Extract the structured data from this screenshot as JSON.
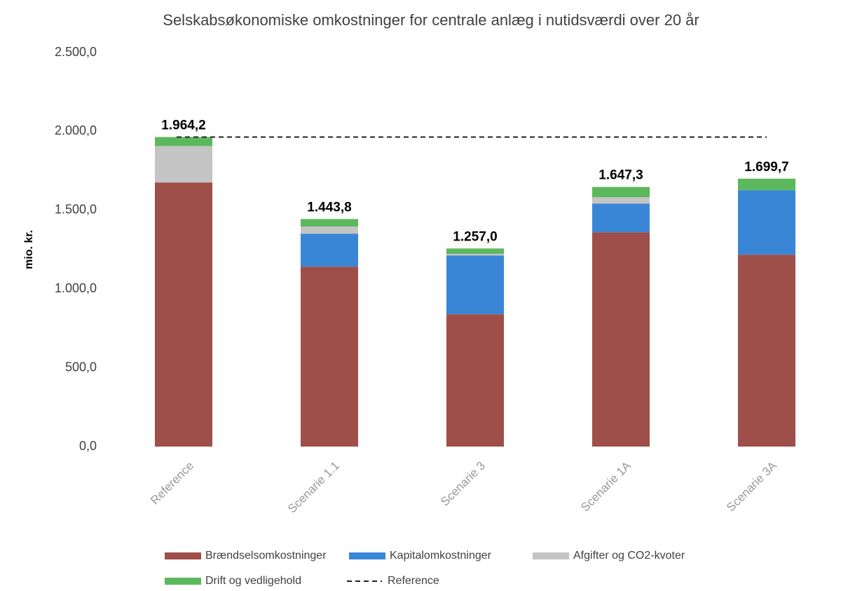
{
  "chart_data": {
    "type": "stacked_bar",
    "title": "Selskabsøkonomiske omkostninger for centrale anlæg i  nutidsværdi over 20 år",
    "y_label": "mio. kr.",
    "categories": [
      "Reference",
      "Scenarie 1.1",
      "Scenarie 3",
      "Scenarie 1A",
      "Scenarie 3A"
    ],
    "series": [
      {
        "name": "Brændselsomkostninger",
        "color": "#9e4f4a",
        "values": [
          1676,
          1142,
          840,
          1360,
          1218
        ]
      },
      {
        "name": "Kapitalomkostninger",
        "color": "#3a86d6",
        "values": [
          0,
          209,
          373,
          182,
          409
        ]
      },
      {
        "name": "Afgifter og CO2-kvoter",
        "color": "#c4c4c4",
        "values": [
          231,
          45,
          10,
          40,
          0
        ]
      },
      {
        "name": "Drift og vedligehold",
        "color": "#5cb85c",
        "values": [
          57.2,
          47.8,
          34,
          65.3,
          72.7
        ]
      }
    ],
    "totals": [
      1964.2,
      1443.8,
      1257.0,
      1647.3,
      1699.7
    ],
    "total_labels": [
      "1.964,2",
      "1.443,8",
      "1.257,0",
      "1.647,3",
      "1.699,7"
    ],
    "reference_line": {
      "name": "Reference",
      "value": 1964.2
    },
    "ylim": [
      0,
      2500
    ],
    "yticks": [
      {
        "value": 0,
        "label": "0,0"
      },
      {
        "value": 500,
        "label": "500,0"
      },
      {
        "value": 1000,
        "label": "1.000,0"
      },
      {
        "value": 1500,
        "label": "1.500,0"
      },
      {
        "value": 2000,
        "label": "2.000,0"
      },
      {
        "value": 2500,
        "label": "2.500,0"
      }
    ],
    "grid": false,
    "legend": "bottom"
  }
}
